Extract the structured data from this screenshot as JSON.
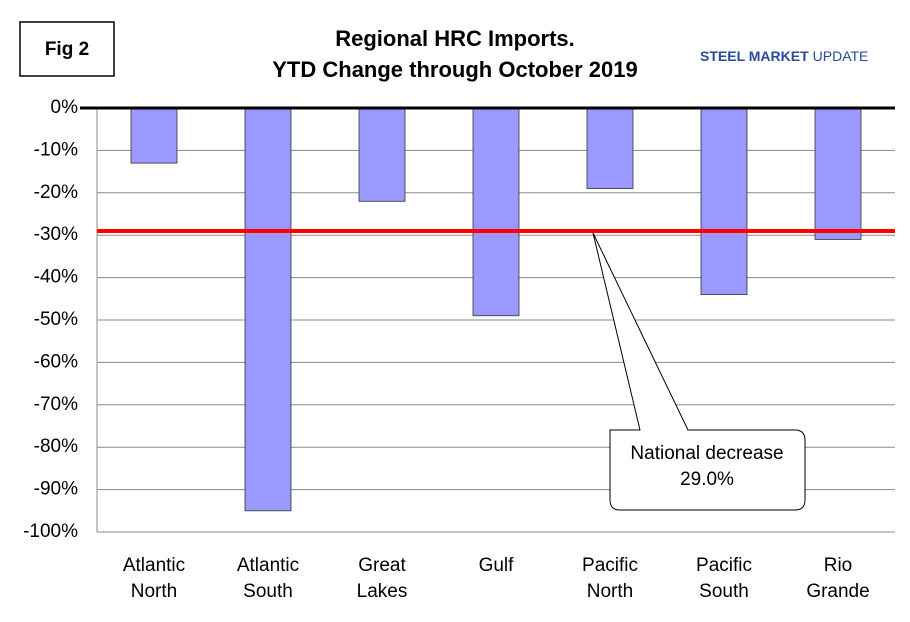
{
  "chart_data": {
    "type": "bar",
    "figure_label": "Fig 2",
    "title": "Regional HRC Imports.",
    "subtitle": "YTD Change through October 2019",
    "logo": {
      "bold": "STEEL MARKET",
      "regular": "UPDATE"
    },
    "categories": [
      [
        "Atlantic",
        "North"
      ],
      [
        "Atlantic",
        "South"
      ],
      [
        "Great",
        "Lakes"
      ],
      [
        "Gulf"
      ],
      [
        "Pacific",
        "North"
      ],
      [
        "Pacific",
        "South"
      ],
      [
        "Rio",
        "Grande"
      ]
    ],
    "values": [
      -13,
      -95,
      -22,
      -49,
      -19,
      -44,
      -31
    ],
    "color": "#9999ff",
    "ylim": [
      -100,
      0
    ],
    "yticks": [
      {
        "value": 0,
        "label": "0%"
      },
      {
        "value": -10,
        "label": "-10%"
      },
      {
        "value": -20,
        "label": "-20%"
      },
      {
        "value": -30,
        "label": "-30%"
      },
      {
        "value": -40,
        "label": "-40%"
      },
      {
        "value": -50,
        "label": "-50%"
      },
      {
        "value": -60,
        "label": "-60%"
      },
      {
        "value": -70,
        "label": "-70%"
      },
      {
        "value": -80,
        "label": "-80%"
      },
      {
        "value": -90,
        "label": "-90%"
      },
      {
        "value": -100,
        "label": "-100%"
      }
    ],
    "grid": true,
    "reference_line": {
      "value": -29,
      "color": "#ff0000"
    },
    "annotation": {
      "lines": [
        "National decrease",
        "29.0%"
      ]
    }
  }
}
